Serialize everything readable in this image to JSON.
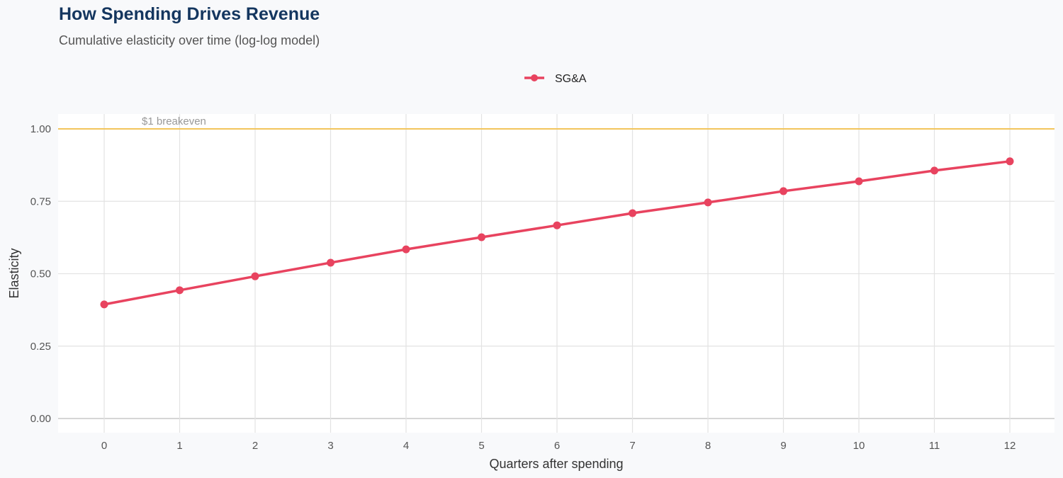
{
  "chart_data": {
    "type": "line",
    "title": "How Spending Drives Revenue",
    "subtitle": "Cumulative elasticity over time (log-log model)",
    "xlabel": "Quarters after spending",
    "ylabel": "Elasticity",
    "x": [
      0,
      1,
      2,
      3,
      4,
      5,
      6,
      7,
      8,
      9,
      10,
      11,
      12
    ],
    "xticks": [
      "0",
      "1",
      "2",
      "3",
      "4",
      "5",
      "6",
      "7",
      "8",
      "9",
      "10",
      "11",
      "12"
    ],
    "yticks": [
      "0.00",
      "0.25",
      "0.50",
      "0.75",
      "1.00"
    ],
    "ylim": [
      0,
      1.05
    ],
    "xlim": [
      -0.6,
      12.6
    ],
    "grid": true,
    "legend_position": "top",
    "series": [
      {
        "name": "SG&A",
        "color": "#e8435f",
        "values": [
          0.394,
          0.443,
          0.491,
          0.538,
          0.584,
          0.626,
          0.667,
          0.709,
          0.746,
          0.785,
          0.819,
          0.856,
          0.888
        ]
      }
    ],
    "reference_line": {
      "y": 1.0,
      "label": "$1 breakeven",
      "color": "#f2c55c"
    }
  }
}
